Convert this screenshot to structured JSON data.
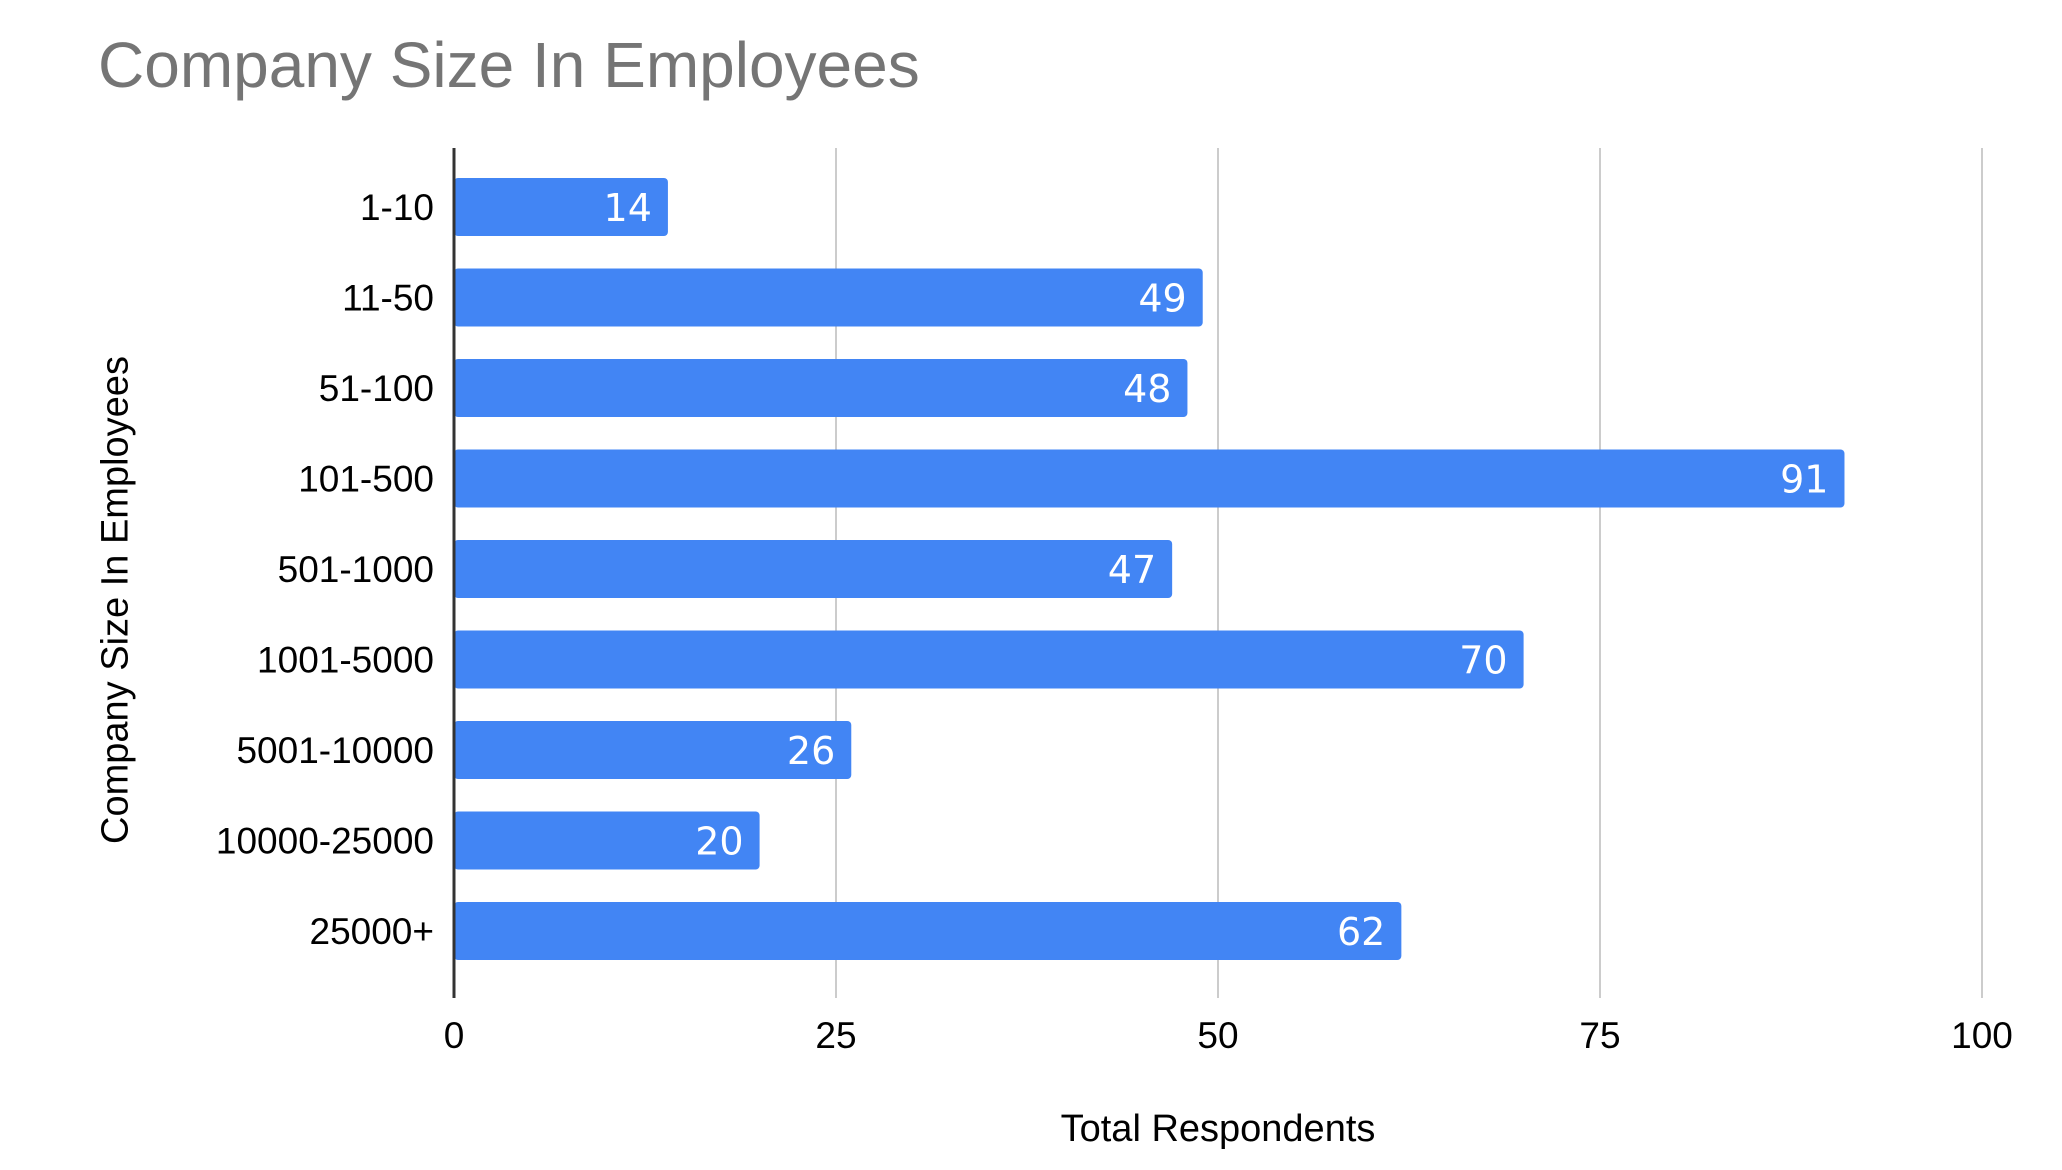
{
  "chart_data": {
    "type": "bar",
    "orientation": "horizontal",
    "title": "Company Size In Employees",
    "xlabel": "Total Respondents",
    "ylabel": "Company Size In Employees",
    "categories": [
      "1-10",
      "11-50",
      "51-100",
      "101-500",
      "501-1000",
      "1001-5000",
      "5001-10000",
      "10000-25000",
      "25000+"
    ],
    "values": [
      14,
      49,
      48,
      91,
      47,
      70,
      26,
      20,
      62
    ],
    "xlim": [
      0,
      100
    ],
    "xticks": [
      0,
      25,
      50,
      75,
      100
    ],
    "grid": "vertical",
    "legend": "none",
    "data_labels": true,
    "colors": {
      "bar": "#4285f4",
      "grid": "#cccccc",
      "axis": "#333333",
      "title": "#757575"
    }
  }
}
